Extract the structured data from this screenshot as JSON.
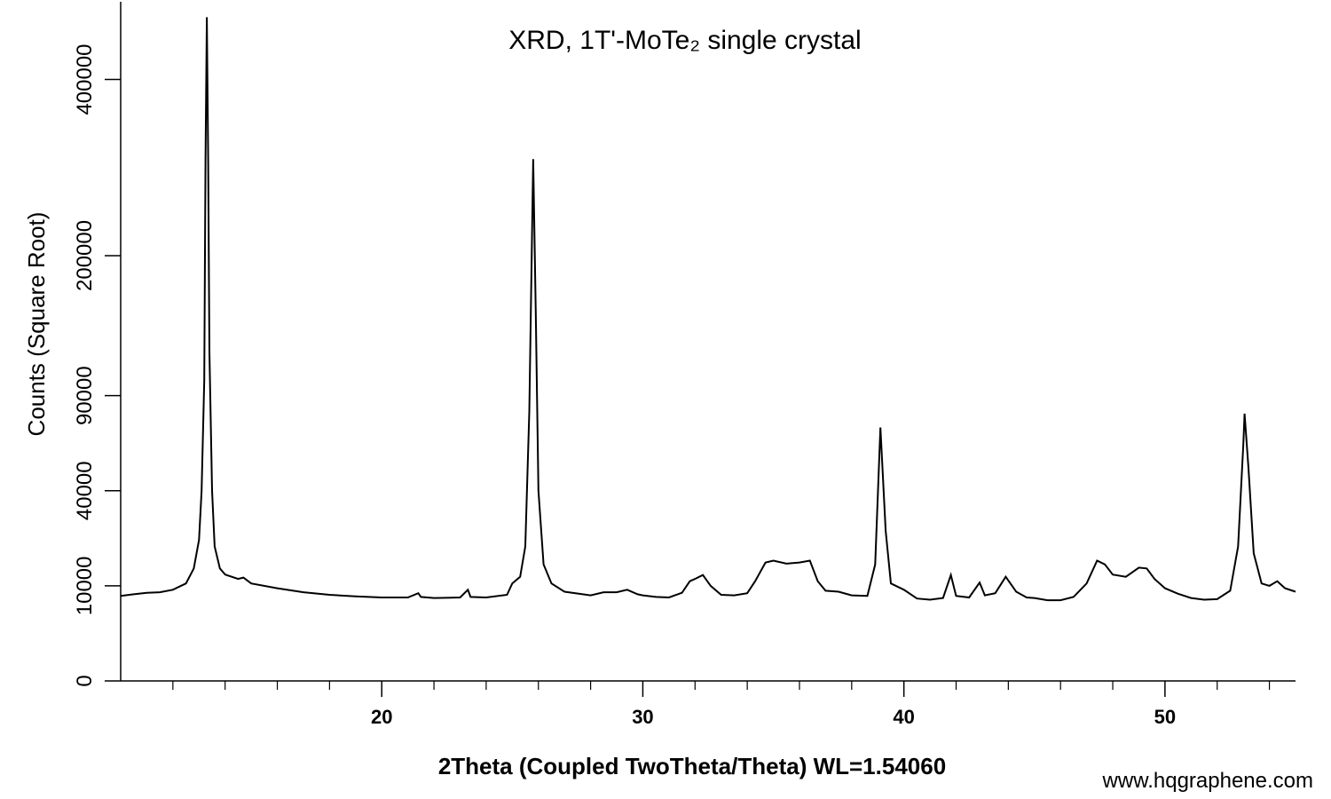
{
  "chart_data": {
    "type": "line",
    "title": "XRD, 1T'-MoTe₂ single crystal",
    "xlabel": "2Theta (Coupled TwoTheta/Theta) WL=1.54060",
    "ylabel": "Counts (Square Root)",
    "watermark": "www.hqgraphene.com",
    "yscale": "sqrt",
    "xlim": [
      10,
      55
    ],
    "xticks": [
      20,
      30,
      40,
      50
    ],
    "xminorticks": [
      12,
      14,
      16,
      18,
      22,
      24,
      26,
      28,
      32,
      34,
      36,
      38,
      42,
      44,
      46,
      48,
      52,
      54
    ],
    "ylim": [
      0,
      510000
    ],
    "yticks": [
      0,
      10000,
      40000,
      90000,
      200000,
      400000
    ],
    "series": [
      {
        "name": "XRD",
        "color": "#000000",
        "x": [
          10,
          10.5,
          11,
          11.5,
          12,
          12.5,
          12.8,
          13,
          13.1,
          13.2,
          13.25,
          13.3,
          13.35,
          13.4,
          13.5,
          13.6,
          13.8,
          14,
          14.5,
          14.7,
          15,
          16,
          17,
          18,
          19,
          20,
          20.8,
          21,
          21.4,
          21.5,
          22,
          23,
          23.3,
          23.4,
          24,
          24.8,
          25,
          25.3,
          25.5,
          25.65,
          25.8,
          25.9,
          26,
          26.2,
          26.5,
          27,
          28,
          28.5,
          29,
          29.4,
          29.8,
          30,
          30.5,
          31,
          31.5,
          31.8,
          32,
          32.3,
          32.6,
          33,
          33.5,
          34,
          34.3,
          34.7,
          35,
          35.5,
          36,
          36.4,
          36.7,
          37,
          37.5,
          38,
          38.6,
          38.9,
          39.1,
          39.3,
          39.5,
          40,
          40.5,
          41,
          41.5,
          41.8,
          42,
          42.5,
          42.9,
          43.1,
          43.5,
          43.9,
          44.3,
          44.7,
          45,
          45.5,
          46,
          46.5,
          47,
          47.4,
          47.7,
          48,
          48.5,
          49,
          49.3,
          49.6,
          50,
          50.5,
          51,
          51.5,
          52,
          52.5,
          52.8,
          53,
          53.05,
          53.2,
          53.4,
          53.7,
          54,
          54.3,
          54.6,
          55
        ],
        "values": [
          8000,
          8300,
          8600,
          8700,
          9200,
          10500,
          14000,
          22000,
          40000,
          100000,
          300000,
          487000,
          300000,
          120000,
          40000,
          20000,
          14000,
          12500,
          11500,
          11800,
          10500,
          9500,
          8700,
          8200,
          7900,
          7700,
          7700,
          7700,
          8500,
          7800,
          7600,
          7700,
          9200,
          7800,
          7700,
          8200,
          10500,
          12000,
          20000,
          80000,
          301000,
          150000,
          40000,
          15000,
          10500,
          8800,
          8100,
          8700,
          8700,
          9200,
          8300,
          8100,
          7800,
          7700,
          8600,
          11000,
          11500,
          12400,
          10000,
          8200,
          8100,
          8500,
          11000,
          15500,
          16000,
          15200,
          15500,
          16000,
          11000,
          9000,
          8800,
          8100,
          8000,
          15000,
          71000,
          25000,
          10500,
          9200,
          7500,
          7300,
          7600,
          12400,
          8000,
          7700,
          10700,
          8100,
          8500,
          12000,
          8800,
          7700,
          7600,
          7200,
          7200,
          7800,
          10500,
          16000,
          15000,
          12500,
          12000,
          14200,
          14000,
          11500,
          9500,
          8400,
          7600,
          7300,
          7400,
          9000,
          20000,
          62000,
          79000,
          50000,
          18000,
          10500,
          10000,
          11000,
          9500,
          8800
        ]
      }
    ]
  }
}
